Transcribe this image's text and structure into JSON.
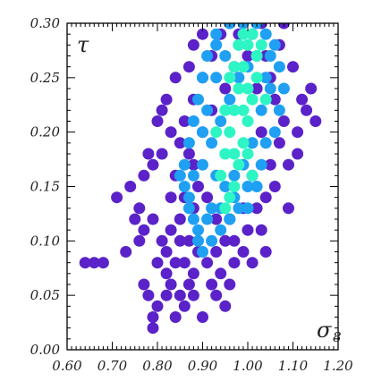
{
  "chart_data": {
    "type": "scatter",
    "title": "",
    "xlabel": "σ",
    "xlabel_sub": "8",
    "ylabel": "τ",
    "xlim": [
      0.6,
      1.2
    ],
    "ylim": [
      0.0,
      0.3
    ],
    "x_ticks": [
      0.6,
      0.7,
      0.8,
      0.9,
      1.0,
      1.1,
      1.2
    ],
    "x_tick_labels": [
      "0.60",
      "0.70",
      "0.80",
      "0.90",
      "1.00",
      "1.10",
      "1.20"
    ],
    "y_ticks": [
      0.0,
      0.05,
      0.1,
      0.15,
      0.2,
      0.25,
      0.3
    ],
    "y_tick_labels": [
      "0.00",
      "0.05",
      "0.10",
      "0.15",
      "0.20",
      "0.25",
      "0.30"
    ],
    "grid": false,
    "legend": "none",
    "series": [
      {
        "color": "#5a22c8",
        "points": [
          [
            0.64,
            0.08
          ],
          [
            0.66,
            0.08
          ],
          [
            0.68,
            0.08
          ],
          [
            0.71,
            0.14
          ],
          [
            0.73,
            0.09
          ],
          [
            0.76,
            0.1
          ],
          [
            0.77,
            0.06
          ],
          [
            0.78,
            0.05
          ],
          [
            0.79,
            0.03
          ],
          [
            0.79,
            0.02
          ],
          [
            0.8,
            0.04
          ],
          [
            0.82,
            0.05
          ],
          [
            0.83,
            0.06
          ],
          [
            0.85,
            0.05
          ],
          [
            0.86,
            0.04
          ],
          [
            0.87,
            0.06
          ],
          [
            0.88,
            0.05
          ],
          [
            0.9,
            0.03
          ],
          [
            0.92,
            0.06
          ],
          [
            0.94,
            0.07
          ],
          [
            0.97,
            0.08
          ],
          [
            0.99,
            0.09
          ],
          [
            1.03,
            0.11
          ],
          [
            1.06,
            0.15
          ],
          [
            1.09,
            0.17
          ],
          [
            1.11,
            0.2
          ],
          [
            1.12,
            0.23
          ],
          [
            1.14,
            0.24
          ],
          [
            1.1,
            0.26
          ],
          [
            1.07,
            0.28
          ],
          [
            1.08,
            0.3
          ],
          [
            1.03,
            0.3
          ],
          [
            0.96,
            0.3
          ],
          [
            0.9,
            0.29
          ],
          [
            0.88,
            0.28
          ],
          [
            0.87,
            0.26
          ],
          [
            0.84,
            0.25
          ],
          [
            0.82,
            0.23
          ],
          [
            0.81,
            0.22
          ],
          [
            0.8,
            0.21
          ],
          [
            0.83,
            0.2
          ],
          [
            0.81,
            0.18
          ],
          [
            0.79,
            0.17
          ],
          [
            0.78,
            0.18
          ],
          [
            0.77,
            0.16
          ],
          [
            0.76,
            0.13
          ],
          [
            0.75,
            0.12
          ],
          [
            0.74,
            0.15
          ],
          [
            0.85,
            0.1
          ],
          [
            0.83,
            0.11
          ],
          [
            0.82,
            0.09
          ],
          [
            0.81,
            0.1
          ],
          [
            0.8,
            0.08
          ],
          [
            0.84,
            0.08
          ],
          [
            0.86,
            0.08
          ],
          [
            0.87,
            0.1
          ],
          [
            0.85,
            0.12
          ],
          [
            0.86,
            0.14
          ],
          [
            0.88,
            0.13
          ],
          [
            0.89,
            0.09
          ],
          [
            0.91,
            0.08
          ],
          [
            0.93,
            0.09
          ],
          [
            0.95,
            0.1
          ],
          [
            0.97,
            0.1
          ],
          [
            1.0,
            0.11
          ],
          [
            1.02,
            0.13
          ],
          [
            1.04,
            0.14
          ],
          [
            1.05,
            0.17
          ],
          [
            1.07,
            0.19
          ],
          [
            1.08,
            0.21
          ],
          [
            1.06,
            0.23
          ],
          [
            1.05,
            0.25
          ],
          [
            1.04,
            0.27
          ],
          [
            1.01,
            0.29
          ],
          [
            0.98,
            0.29
          ],
          [
            0.94,
            0.29
          ],
          [
            0.92,
            0.27
          ],
          [
            0.9,
            0.25
          ],
          [
            0.88,
            0.23
          ],
          [
            0.86,
            0.21
          ],
          [
            0.85,
            0.19
          ],
          [
            0.84,
            0.16
          ],
          [
            0.88,
            0.17
          ],
          [
            0.9,
            0.2
          ],
          [
            0.92,
            0.22
          ],
          [
            0.95,
            0.24
          ],
          [
            0.97,
            0.26
          ],
          [
            1.0,
            0.27
          ],
          [
            1.02,
            0.24
          ],
          [
            1.03,
            0.2
          ],
          [
            1.01,
            0.16
          ],
          [
            0.99,
            0.13
          ],
          [
            0.96,
            0.12
          ],
          [
            0.93,
            0.12
          ],
          [
            0.91,
            0.14
          ],
          [
            0.89,
            0.15
          ],
          [
            0.87,
            0.18
          ],
          [
            0.83,
            0.14
          ],
          [
            0.79,
            0.12
          ],
          [
            0.77,
            0.11
          ],
          [
            0.82,
            0.07
          ],
          [
            0.88,
            0.07
          ],
          [
            0.93,
            0.05
          ],
          [
            0.96,
            0.06
          ],
          [
            1.01,
            0.08
          ],
          [
            1.04,
            0.09
          ],
          [
            1.09,
            0.13
          ],
          [
            1.13,
            0.22
          ],
          [
            1.15,
            0.21
          ],
          [
            1.11,
            0.18
          ],
          [
            0.95,
            0.04
          ],
          [
            0.84,
            0.03
          ]
        ]
      },
      {
        "color": "#1fa0f2",
        "points": [
          [
            0.86,
            0.15
          ],
          [
            0.87,
            0.14
          ],
          [
            0.88,
            0.12
          ],
          [
            0.89,
            0.1
          ],
          [
            0.9,
            0.09
          ],
          [
            0.92,
            0.1
          ],
          [
            0.94,
            0.11
          ],
          [
            0.96,
            0.12
          ],
          [
            0.98,
            0.13
          ],
          [
            1.0,
            0.13
          ],
          [
            1.02,
            0.15
          ],
          [
            1.03,
            0.17
          ],
          [
            1.04,
            0.19
          ],
          [
            1.06,
            0.2
          ],
          [
            1.07,
            0.22
          ],
          [
            1.08,
            0.24
          ],
          [
            1.07,
            0.26
          ],
          [
            1.06,
            0.28
          ],
          [
            1.04,
            0.29
          ],
          [
            1.02,
            0.3
          ],
          [
            0.99,
            0.3
          ],
          [
            0.96,
            0.3
          ],
          [
            0.93,
            0.29
          ],
          [
            0.91,
            0.27
          ],
          [
            0.9,
            0.25
          ],
          [
            0.89,
            0.23
          ],
          [
            0.88,
            0.21
          ],
          [
            0.87,
            0.19
          ],
          [
            0.86,
            0.17
          ],
          [
            0.88,
            0.16
          ],
          [
            0.9,
            0.17
          ],
          [
            0.92,
            0.19
          ],
          [
            0.94,
            0.21
          ],
          [
            0.96,
            0.23
          ],
          [
            0.98,
            0.25
          ],
          [
            1.0,
            0.26
          ],
          [
            1.02,
            0.27
          ],
          [
            0.95,
            0.27
          ],
          [
            0.93,
            0.25
          ],
          [
            0.91,
            0.22
          ],
          [
            0.93,
            0.16
          ],
          [
            0.95,
            0.15
          ],
          [
            0.97,
            0.16
          ],
          [
            0.99,
            0.17
          ],
          [
            1.01,
            0.19
          ],
          [
            1.03,
            0.22
          ],
          [
            1.05,
            0.24
          ],
          [
            0.92,
            0.13
          ],
          [
            0.89,
            0.11
          ],
          [
            0.91,
            0.12
          ],
          [
            0.94,
            0.13
          ],
          [
            0.97,
            0.14
          ],
          [
            1.0,
            0.15
          ],
          [
            1.04,
            0.25
          ],
          [
            0.98,
            0.28
          ],
          [
            0.9,
            0.2
          ],
          [
            0.87,
            0.13
          ],
          [
            0.93,
            0.28
          ],
          [
            1.05,
            0.27
          ],
          [
            0.85,
            0.16
          ]
        ]
      },
      {
        "color": "#2ef5c4",
        "points": [
          [
            0.94,
            0.16
          ],
          [
            0.95,
            0.18
          ],
          [
            0.96,
            0.2
          ],
          [
            0.97,
            0.22
          ],
          [
            0.98,
            0.24
          ],
          [
            0.99,
            0.26
          ],
          [
            1.0,
            0.28
          ],
          [
            1.01,
            0.29
          ],
          [
            1.02,
            0.27
          ],
          [
            1.02,
            0.25
          ],
          [
            1.01,
            0.23
          ],
          [
            1.0,
            0.21
          ],
          [
            0.99,
            0.19
          ],
          [
            0.98,
            0.17
          ],
          [
            0.97,
            0.15
          ],
          [
            0.96,
            0.14
          ],
          [
            0.95,
            0.13
          ],
          [
            0.97,
            0.18
          ],
          [
            0.99,
            0.22
          ],
          [
            1.0,
            0.24
          ],
          [
            0.97,
            0.26
          ],
          [
            0.98,
            0.28
          ],
          [
            1.03,
            0.28
          ],
          [
            1.04,
            0.23
          ],
          [
            0.93,
            0.2
          ],
          [
            0.95,
            0.22
          ],
          [
            1.0,
            0.18
          ],
          [
            1.01,
            0.16
          ],
          [
            0.96,
            0.25
          ],
          [
            0.99,
            0.29
          ]
        ]
      }
    ]
  }
}
